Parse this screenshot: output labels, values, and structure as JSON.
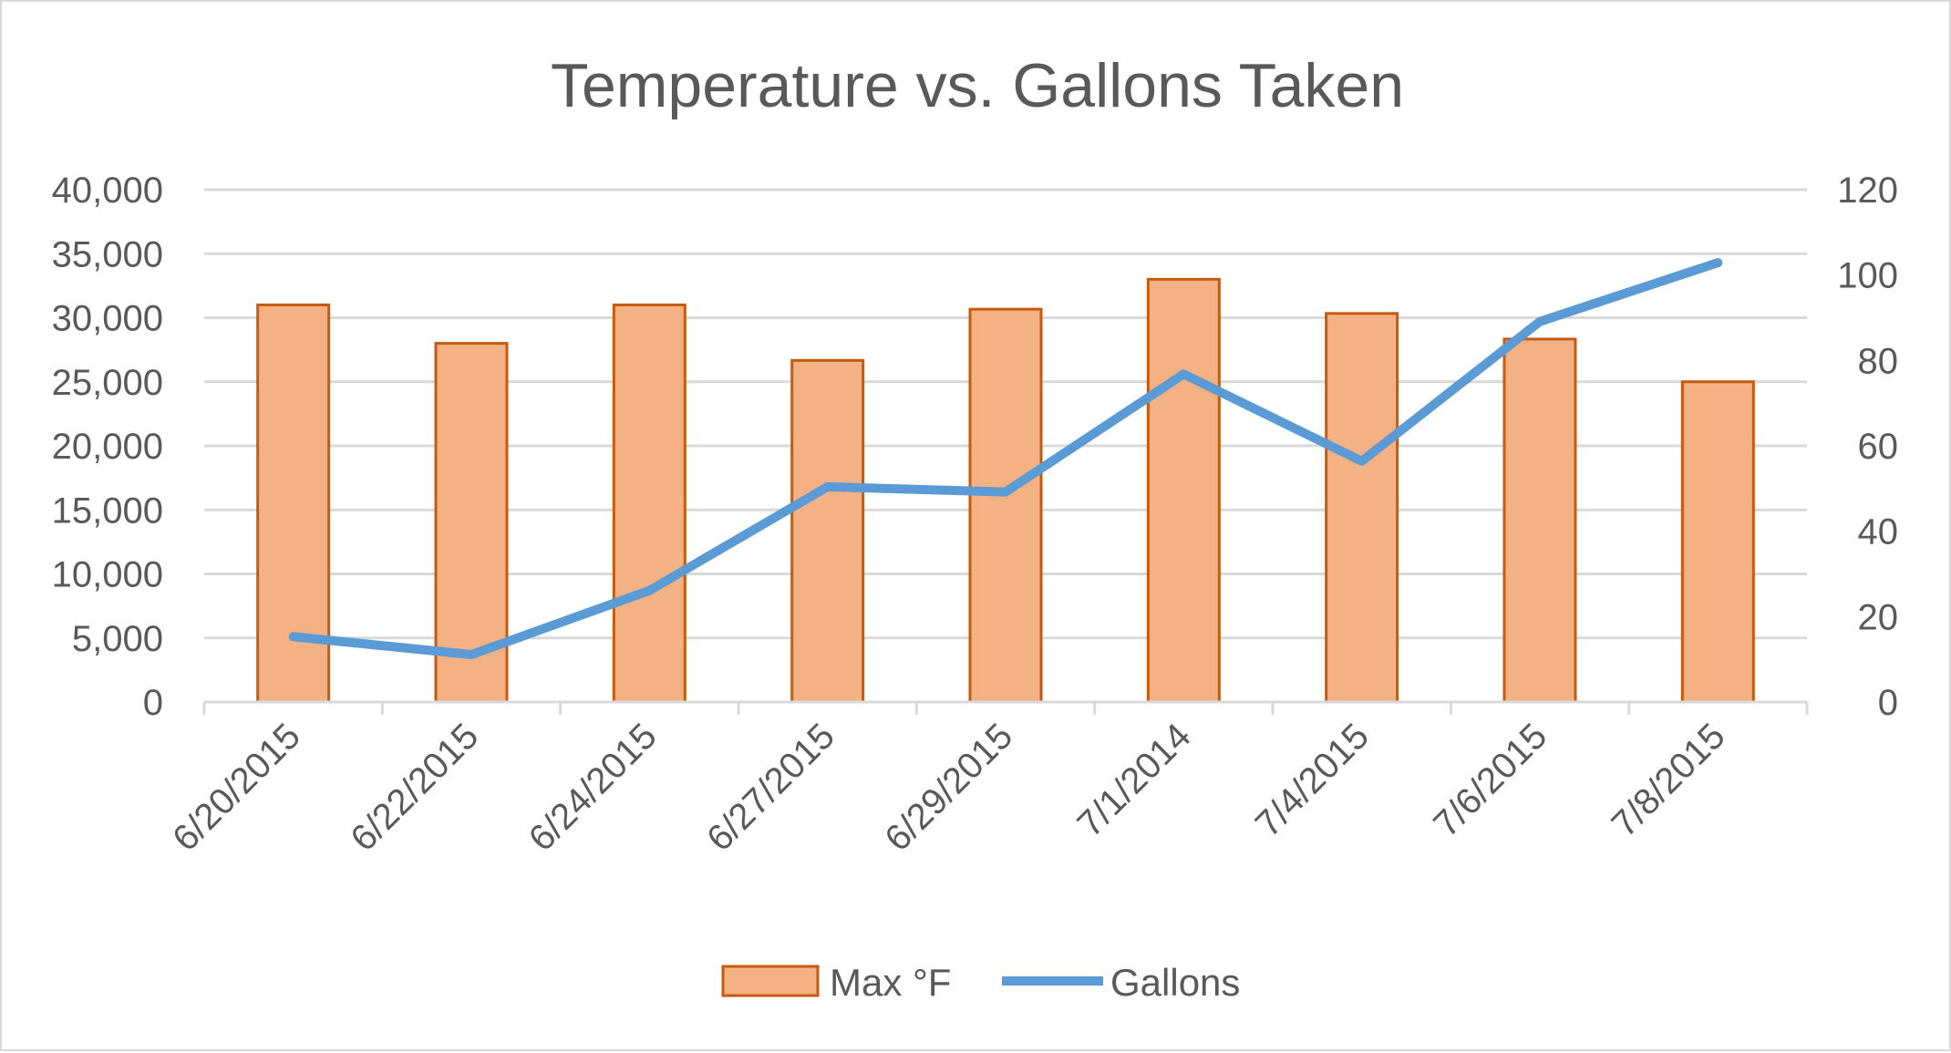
{
  "chart_data": {
    "type": "bar",
    "title": "Temperature vs. Gallons Taken",
    "categories": [
      "6/20/2015",
      "6/22/2015",
      "6/24/2015",
      "6/27/2015",
      "6/29/2015",
      "7/1/2014",
      "7/4/2015",
      "7/6/2015",
      "7/8/2015"
    ],
    "y_left": {
      "ticks": [
        "0",
        "5,000",
        "10,000",
        "15,000",
        "20,000",
        "25,000",
        "30,000",
        "35,000",
        "40,000"
      ],
      "ylim": [
        0,
        40000
      ]
    },
    "y_right": {
      "ticks": [
        "0",
        "20",
        "40",
        "60",
        "80",
        "100",
        "120"
      ],
      "ylim": [
        0,
        120
      ]
    },
    "series": [
      {
        "name": "Max °F",
        "type": "bar",
        "axis": "right",
        "color": "#F4B183",
        "edge_color": "#C55A11",
        "values": [
          93,
          84,
          93,
          80,
          92,
          99,
          91,
          85,
          75
        ]
      },
      {
        "name": "Gallons",
        "type": "line",
        "axis": "left",
        "color": "#5B9BD5",
        "values": [
          5100,
          3700,
          8700,
          16800,
          16400,
          25600,
          18800,
          29700,
          34300
        ]
      }
    ],
    "grid": true,
    "legend": "bottom"
  }
}
